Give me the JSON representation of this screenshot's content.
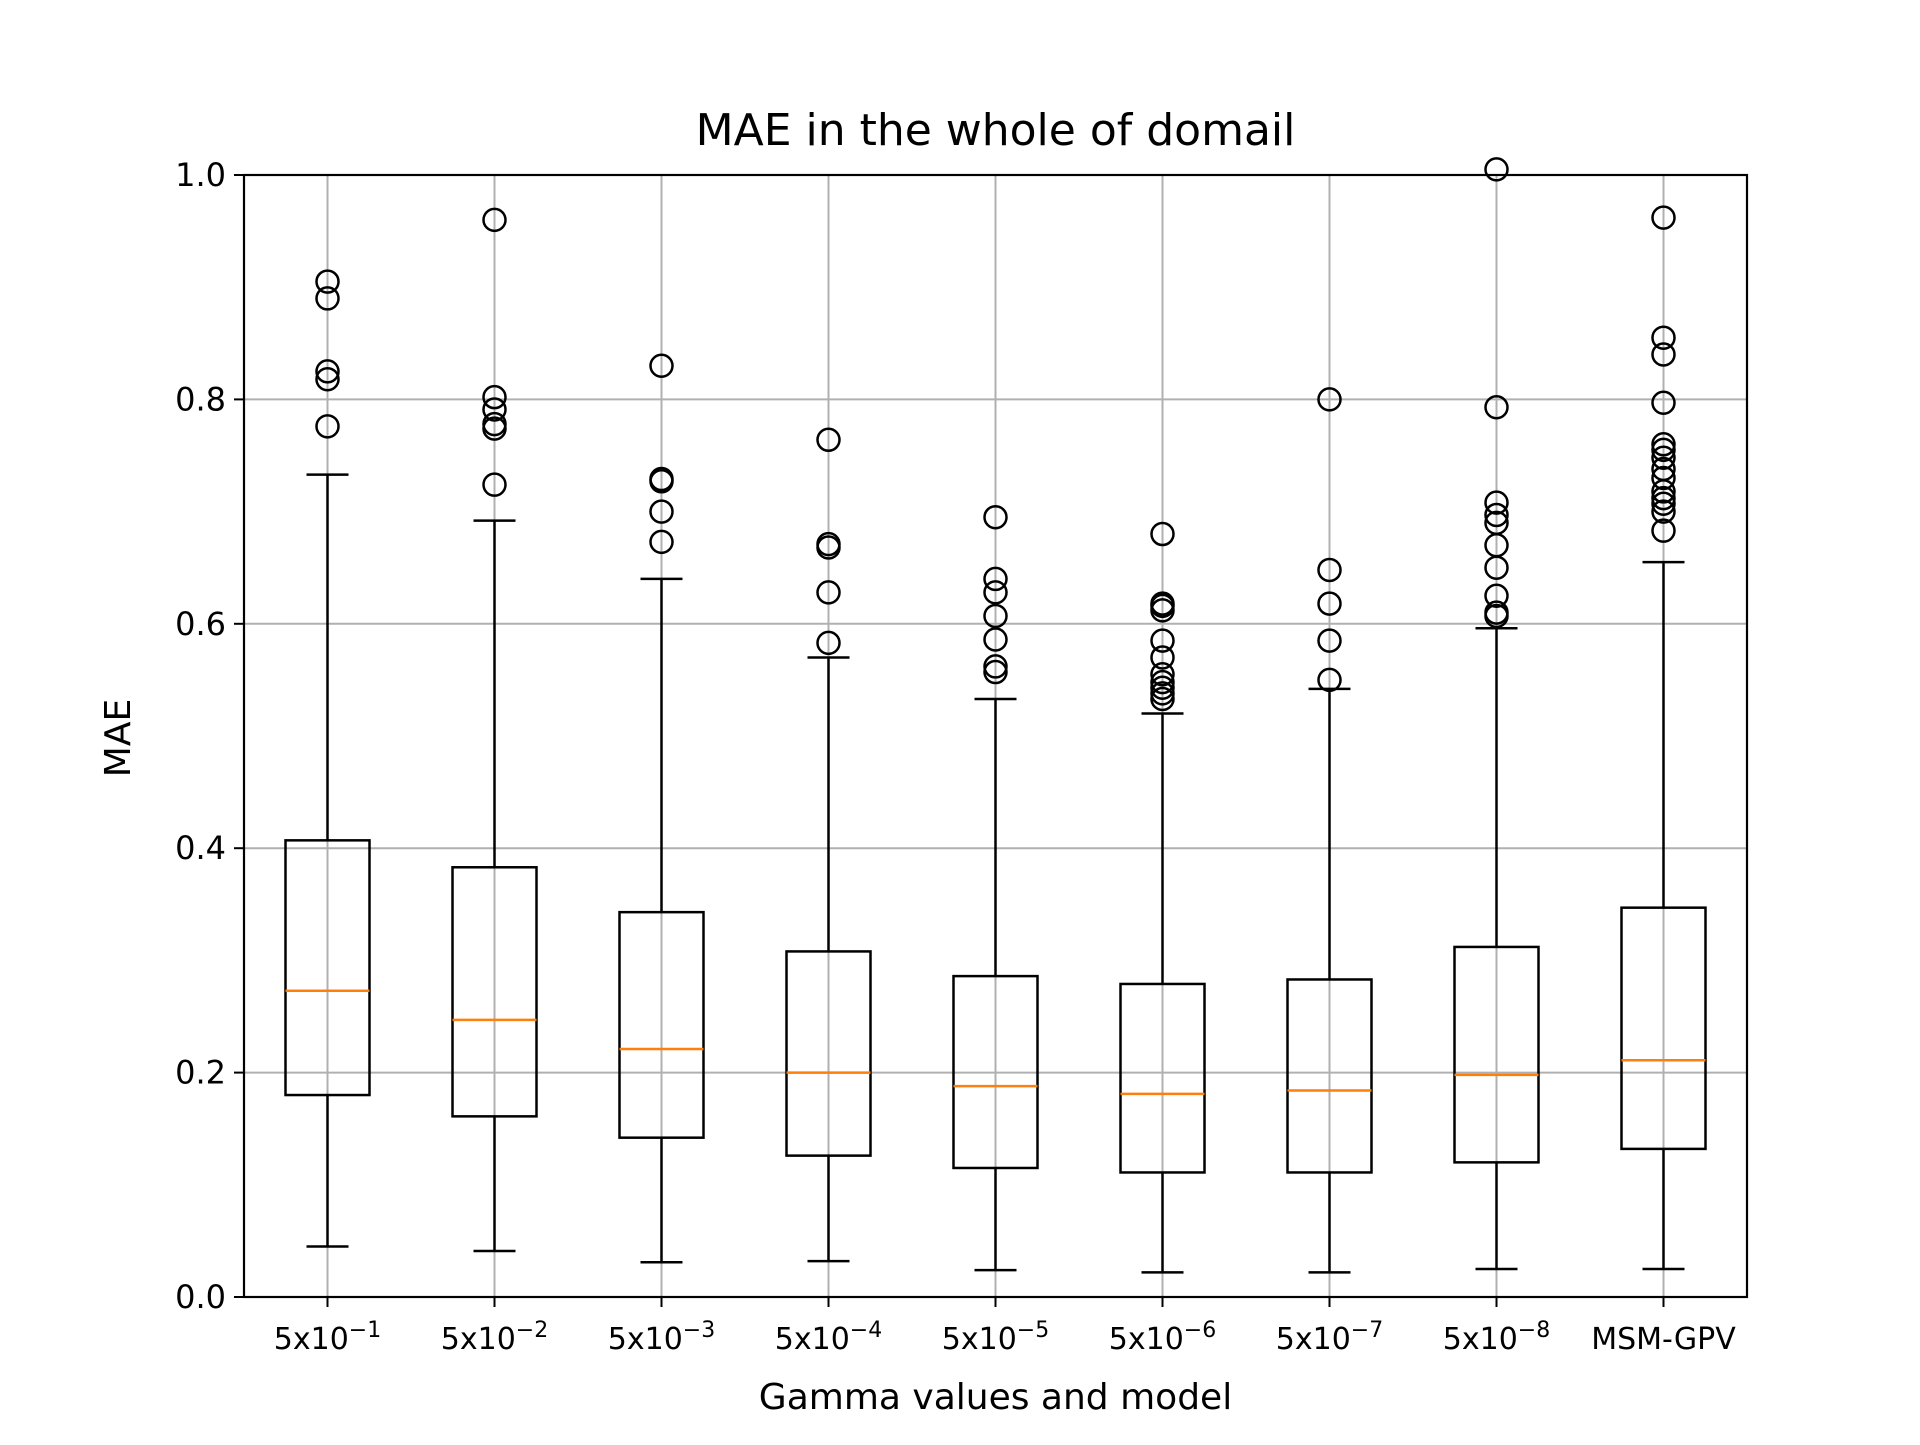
{
  "chart_data": {
    "type": "box",
    "title": "MAE in the whole of domail",
    "xlabel": "Gamma values and model",
    "ylabel": "MAE",
    "ylim": [
      0.0,
      1.0
    ],
    "yticks": [
      "0.0",
      "0.2",
      "0.4",
      "0.6",
      "0.8",
      "1.0"
    ],
    "grid": true,
    "categories": [
      {
        "base": "5x10",
        "exp": "−1"
      },
      {
        "base": "5x10",
        "exp": "−2"
      },
      {
        "base": "5x10",
        "exp": "−3"
      },
      {
        "base": "5x10",
        "exp": "−4"
      },
      {
        "base": "5x10",
        "exp": "−5"
      },
      {
        "base": "5x10",
        "exp": "−6"
      },
      {
        "base": "5x10",
        "exp": "−7"
      },
      {
        "base": "5x10",
        "exp": "−8"
      },
      {
        "base": "MSM-GPV",
        "exp": ""
      }
    ],
    "boxes": [
      {
        "whisker_low": 0.045,
        "q1": 0.18,
        "median": 0.273,
        "q3": 0.407,
        "whisker_high": 0.733,
        "outliers": [
          0.776,
          0.818,
          0.825,
          0.89,
          0.905
        ]
      },
      {
        "whisker_low": 0.041,
        "q1": 0.161,
        "median": 0.247,
        "q3": 0.383,
        "whisker_high": 0.692,
        "outliers": [
          0.724,
          0.774,
          0.778,
          0.791,
          0.802,
          0.96
        ]
      },
      {
        "whisker_low": 0.031,
        "q1": 0.142,
        "median": 0.221,
        "q3": 0.343,
        "whisker_high": 0.64,
        "outliers": [
          0.673,
          0.7,
          0.727,
          0.729,
          0.83
        ]
      },
      {
        "whisker_low": 0.032,
        "q1": 0.126,
        "median": 0.2,
        "q3": 0.308,
        "whisker_high": 0.57,
        "outliers": [
          0.583,
          0.628,
          0.668,
          0.671,
          0.764
        ]
      },
      {
        "whisker_low": 0.024,
        "q1": 0.115,
        "median": 0.188,
        "q3": 0.286,
        "whisker_high": 0.533,
        "outliers": [
          0.557,
          0.562,
          0.586,
          0.607,
          0.628,
          0.64,
          0.695
        ]
      },
      {
        "whisker_low": 0.022,
        "q1": 0.111,
        "median": 0.181,
        "q3": 0.279,
        "whisker_high": 0.52,
        "outliers": [
          0.533,
          0.538,
          0.543,
          0.548,
          0.555,
          0.57,
          0.585,
          0.612,
          0.616,
          0.618,
          0.68
        ]
      },
      {
        "whisker_low": 0.022,
        "q1": 0.111,
        "median": 0.184,
        "q3": 0.283,
        "whisker_high": 0.542,
        "outliers": [
          0.55,
          0.585,
          0.618,
          0.648,
          0.8
        ]
      },
      {
        "whisker_low": 0.025,
        "q1": 0.12,
        "median": 0.198,
        "q3": 0.312,
        "whisker_high": 0.596,
        "outliers": [
          0.607,
          0.61,
          0.625,
          0.65,
          0.67,
          0.69,
          0.697,
          0.708,
          0.793,
          1.005
        ]
      },
      {
        "whisker_low": 0.025,
        "q1": 0.132,
        "median": 0.211,
        "q3": 0.347,
        "whisker_high": 0.655,
        "outliers": [
          0.683,
          0.7,
          0.707,
          0.712,
          0.718,
          0.73,
          0.738,
          0.748,
          0.755,
          0.76,
          0.797,
          0.84,
          0.855,
          0.962
        ]
      }
    ],
    "colors": {
      "box": "#000000",
      "median": "#ff7f0e",
      "grid": "#b0b0b0",
      "background": "#ffffff"
    }
  }
}
